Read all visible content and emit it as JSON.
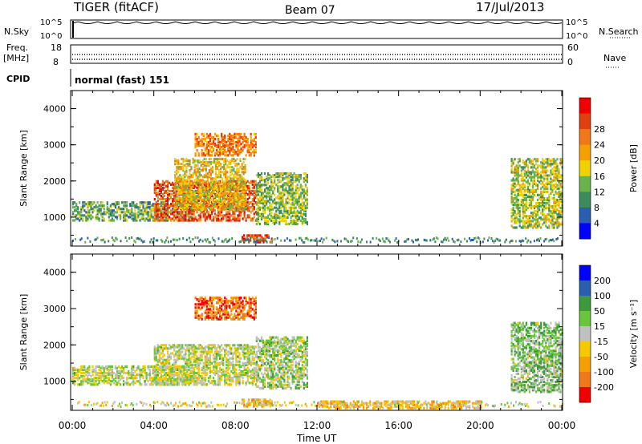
{
  "header": {
    "radar": "TIGER (fitACF)",
    "beam": "Beam 07",
    "date": "17/Jul/2013"
  },
  "top_panels": {
    "nsky": {
      "label": "N.Sky",
      "ticks": [
        "10^5",
        "10^0"
      ]
    },
    "nsearch": {
      "label": "N.Search",
      "ticks": [
        "10^5",
        "10^0"
      ]
    },
    "freq": {
      "label_line1": "Freq.",
      "label_line2": "[MHz]",
      "ticks": [
        "18",
        "8"
      ]
    },
    "nave": {
      "label": "Nave",
      "ticks": [
        "60",
        "0"
      ]
    },
    "cpid": {
      "label": "CPID",
      "value": "normal (fast) 151"
    }
  },
  "colors": {
    "power": [
      "#0000ff",
      "#2a5fb0",
      "#3c8c5a",
      "#6ab24a",
      "#f0d200",
      "#f5a000",
      "#f07818",
      "#e04010",
      "#f00000"
    ],
    "velocity": [
      "#f00000",
      "#f07818",
      "#f5a000",
      "#f5c800",
      "#c0c0c0",
      "#6ac43c",
      "#3c9a3c",
      "#2a5fb0",
      "#0000ff"
    ]
  },
  "chart_data": [
    {
      "type": "heatmap",
      "title": "Power",
      "ylabel": "Slant Range [km]",
      "xlabel": "Time UT",
      "ylim": [
        200,
        4500
      ],
      "yticks": [
        "1000",
        "2000",
        "3000",
        "4000"
      ],
      "xticks": [
        "00:00",
        "04:00",
        "08:00",
        "12:00",
        "16:00",
        "20:00",
        "00:00"
      ],
      "colorbar": {
        "label": "Power [dB]",
        "ticks": [
          "4",
          "8",
          "12",
          "16",
          "20",
          "24",
          "28"
        ]
      },
      "regions": [
        {
          "t": [
            0,
            6
          ],
          "r": [
            900,
            1400
          ],
          "level": 0.35
        },
        {
          "t": [
            4,
            9
          ],
          "r": [
            900,
            2000
          ],
          "level": 0.8
        },
        {
          "t": [
            5,
            8.5
          ],
          "r": [
            1200,
            2600
          ],
          "level": 0.55
        },
        {
          "t": [
            6,
            9
          ],
          "r": [
            2700,
            3300
          ],
          "level": 0.7
        },
        {
          "t": [
            8.3,
            9.8
          ],
          "r": [
            300,
            500
          ],
          "level": 0.85
        },
        {
          "t": [
            9,
            11.5
          ],
          "r": [
            800,
            2200
          ],
          "level": 0.4
        },
        {
          "t": [
            21.5,
            24
          ],
          "r": [
            700,
            2600
          ],
          "level": 0.45
        }
      ]
    },
    {
      "type": "heatmap",
      "title": "Velocity",
      "ylabel": "Slant Range [km]",
      "xlabel": "Time UT",
      "ylim": [
        200,
        4500
      ],
      "yticks": [
        "1000",
        "2000",
        "3000",
        "4000"
      ],
      "xticks": [
        "00:00",
        "04:00",
        "08:00",
        "12:00",
        "16:00",
        "20:00",
        "00:00"
      ],
      "colorbar": {
        "label": "Velocity [m s⁻¹]",
        "ticks": [
          "200",
          "100",
          "50",
          "15",
          "-15",
          "-50",
          "-100",
          "-200"
        ]
      },
      "regions": [
        {
          "t": [
            0,
            6
          ],
          "r": [
            900,
            1400
          ],
          "level": 0.5
        },
        {
          "t": [
            4,
            9
          ],
          "r": [
            900,
            2000
          ],
          "level": 0.5
        },
        {
          "t": [
            6,
            9
          ],
          "r": [
            2700,
            3300
          ],
          "level": 0.15
        },
        {
          "t": [
            8.3,
            9.8
          ],
          "r": [
            300,
            500
          ],
          "level": 0.3
        },
        {
          "t": [
            9,
            11.5
          ],
          "r": [
            800,
            2200
          ],
          "level": 0.55
        },
        {
          "t": [
            12,
            20
          ],
          "r": [
            250,
            450
          ],
          "level": 0.35
        },
        {
          "t": [
            21.5,
            24
          ],
          "r": [
            700,
            2600
          ],
          "level": 0.6
        }
      ]
    }
  ]
}
